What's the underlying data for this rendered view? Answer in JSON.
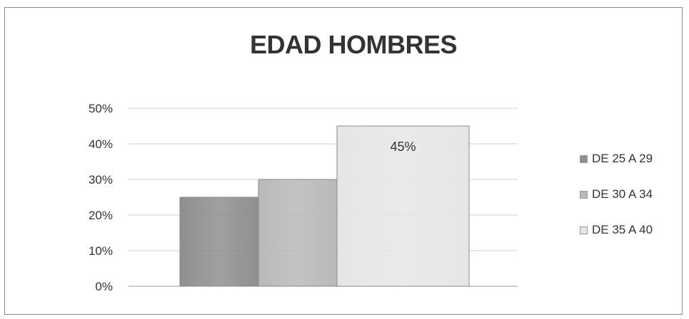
{
  "chart_data": {
    "type": "bar",
    "title": "EDAD HOMBRES",
    "xlabel": "",
    "ylabel": "",
    "ylim": [
      0,
      0.5
    ],
    "yticks": [
      "0%",
      "10%",
      "20%",
      "30%",
      "40%",
      "50%"
    ],
    "grid": true,
    "legend_position": "right",
    "series": [
      {
        "name": "DE 25 A 29",
        "values": [
          0.25
        ],
        "color": "#8f8f8f"
      },
      {
        "name": "DE 30 A 34",
        "values": [
          0.3
        ],
        "color": "#b9b9b9"
      },
      {
        "name": "DE 35 A 40",
        "values": [
          0.45
        ],
        "color": "#e6e6e6",
        "data_label": "45%"
      }
    ]
  }
}
